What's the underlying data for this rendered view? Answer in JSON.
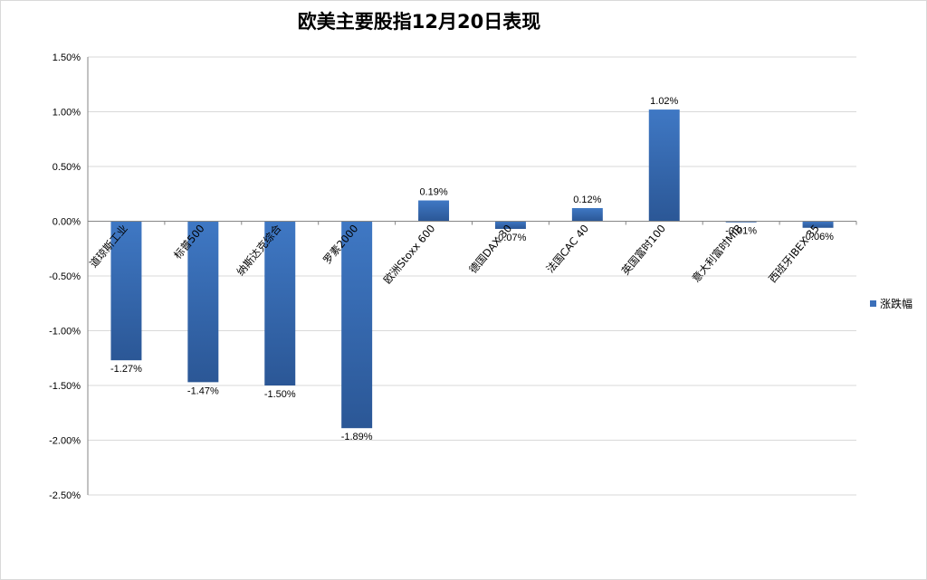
{
  "chart_data": {
    "type": "bar",
    "title": "欧美主要股指12月20日表现",
    "categories": [
      "道琼斯工业",
      "标普500",
      "纳斯达克综合",
      "罗素2000",
      "欧洲Stoxx 600",
      "德国DAX 30",
      "法国CAC 40",
      "英国富时100",
      "意大利富时MIB",
      "西班牙IBEX 35"
    ],
    "series": [
      {
        "name": "涨跌幅",
        "values": [
          -1.27,
          -1.47,
          -1.5,
          -1.89,
          0.19,
          -0.07,
          0.12,
          1.02,
          -0.01,
          -0.06
        ],
        "labels": [
          "-1.27%",
          "-1.47%",
          "-1.50%",
          "-1.89%",
          "0.19%",
          "-0.07%",
          "0.12%",
          "1.02%",
          "-0.01%",
          "-0.06%"
        ]
      }
    ],
    "yticks": [
      "1.50%",
      "1.00%",
      "0.50%",
      "0.00%",
      "-0.50%",
      "-1.00%",
      "-1.50%",
      "-2.00%",
      "-2.50%"
    ],
    "ytick_values": [
      1.5,
      1.0,
      0.5,
      0.0,
      -0.5,
      -1.0,
      -1.5,
      -2.0,
      -2.5
    ],
    "ylim": [
      -2.5,
      1.5
    ],
    "grid": true,
    "legend_position": "right",
    "colors": {
      "bar": "#3b6fb9",
      "bar_dark": "#2c5a9a",
      "grid": "#d9d9d9",
      "axis": "#868686"
    }
  }
}
